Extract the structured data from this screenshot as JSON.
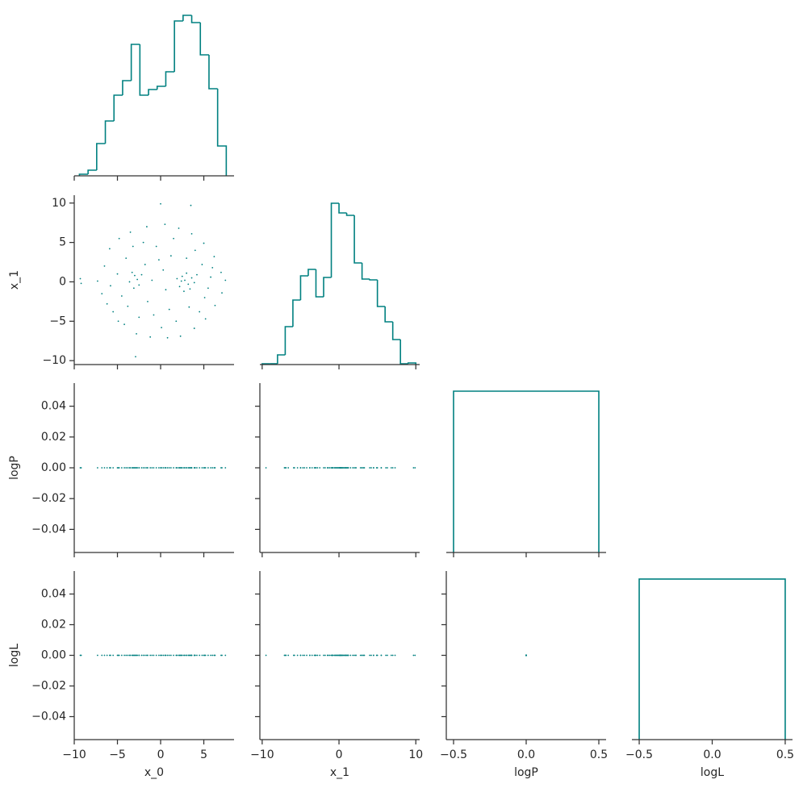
{
  "chart_data": {
    "type": "pairplot",
    "color": "#008080",
    "variables": [
      {
        "name": "x_0",
        "xlim": [
          -10,
          8.5
        ],
        "xticks": [
          {
            "value": -10,
            "label": "−10"
          },
          {
            "value": -5,
            "label": "−5"
          },
          0,
          5
        ],
        "bins": [
          -9.4,
          -8.4,
          -7.4,
          -6.4,
          -5.4,
          -4.4,
          -3.4,
          -2.4,
          -1.4,
          -0.4,
          0.6,
          1.6,
          2.6,
          3.6,
          4.6,
          5.6,
          6.6,
          7.6
        ],
        "counts": [
          2,
          7,
          40,
          68,
          100,
          118,
          163,
          100,
          107,
          111,
          129,
          192,
          199,
          190,
          150,
          108,
          37
        ],
        "count_lim": [
          0,
          210
        ],
        "samples": [
          -9.3,
          -9.2,
          0.0,
          3.5,
          -2.9,
          -3.0,
          -2.7,
          -3.3,
          -2.5,
          -3.6,
          -2.2,
          -3.1,
          2.8,
          3.2,
          2.5,
          3.6,
          2.2,
          3.0,
          2.7,
          3.9,
          2.4,
          3.4,
          1.9,
          4.2,
          -6.5,
          -6.8,
          -5.9,
          -5.5,
          -4.8,
          -4.2,
          -3.5,
          -2.8,
          -1.6,
          -1.2,
          0.5,
          0.8,
          2.1,
          2.3,
          3.6,
          3.9,
          5.0,
          5.2,
          6.2,
          6.3,
          7.0,
          7.1,
          7.5,
          -7.3,
          -5.0,
          -4.5,
          -4.0,
          -3.8,
          -1.8,
          -1.5,
          -0.5,
          -0.8,
          0.3,
          0.6,
          1.2,
          1.0,
          4.8,
          5.1,
          5.8,
          4.5,
          4.0,
          1.5,
          -2.0,
          -2.5,
          1.8,
          -5.8,
          6.0,
          -1.0,
          0.1,
          -4.9,
          5.5,
          3.0,
          3.3,
          -0.2,
          -6.2,
          -3.2
        ]
      },
      {
        "name": "x_1",
        "xlim": [
          -10.3,
          10.5
        ],
        "ylim": [
          -10.5,
          11
        ],
        "xticks": [
          {
            "value": -10,
            "label": "−10"
          },
          0,
          10
        ],
        "yticks": [
          {
            "value": -10,
            "label": "−10"
          },
          {
            "value": -5,
            "label": "−5"
          },
          0,
          5,
          10
        ],
        "bins": [
          -10,
          -9,
          -8,
          -7,
          -6,
          -5,
          -4,
          -3,
          -2,
          -1,
          0,
          1,
          2,
          3,
          4,
          5,
          6,
          7,
          8,
          9,
          10
        ],
        "counts": [
          1,
          1,
          12,
          47,
          80,
          110,
          118,
          84,
          108,
          200,
          188,
          185,
          126,
          106,
          105,
          72,
          53,
          31,
          1,
          2
        ],
        "count_lim": [
          0,
          210
        ],
        "samples": [
          0.4,
          -0.2,
          9.9,
          9.7,
          -9.5,
          0.8,
          0.3,
          1.2,
          -0.4,
          0.0,
          0.9,
          -0.8,
          0.2,
          -0.3,
          0.7,
          0.5,
          -0.6,
          1.1,
          -1.2,
          -0.1,
          0.1,
          -0.9,
          0.4,
          0.9,
          2.0,
          -1.5,
          4.2,
          -3.8,
          5.5,
          -5.4,
          6.3,
          -6.6,
          7.0,
          -7.0,
          7.3,
          -7.1,
          6.8,
          -6.9,
          6.1,
          -5.9,
          4.9,
          -4.7,
          3.2,
          -3.0,
          1.2,
          -1.4,
          0.2,
          0.1,
          1.0,
          -1.8,
          3.0,
          -3.1,
          2.2,
          -2.5,
          4.5,
          -4.2,
          1.5,
          -1.0,
          3.3,
          -3.5,
          2.2,
          -2.0,
          0.6,
          -3.8,
          4.0,
          5.5,
          5.0,
          -4.5,
          -5.0,
          -0.5,
          1.8,
          0.2,
          -5.8,
          -5.0,
          -0.8,
          3.0,
          -3.2,
          2.8,
          -2.8,
          4.5
        ]
      },
      {
        "name": "logP",
        "xlim": [
          -0.55,
          0.55
        ],
        "ylim": [
          -0.055,
          0.055
        ],
        "xticks": [
          {
            "value": -0.5,
            "label": "−0.5"
          },
          {
            "value": 0,
            "label": "0.0"
          },
          0.5
        ],
        "yticks": [
          {
            "value": -0.04,
            "label": "−0.04"
          },
          {
            "value": -0.02,
            "label": "−0.02"
          },
          {
            "value": 0,
            "label": "0.00"
          },
          0.02,
          0.04
        ],
        "bins": [
          -0.5,
          0.5
        ],
        "counts": [
          2000
        ],
        "count_lim": [
          0,
          2100
        ],
        "samples": [
          0,
          0,
          0,
          0,
          0,
          0,
          0,
          0,
          0,
          0,
          0,
          0,
          0,
          0,
          0,
          0,
          0,
          0,
          0,
          0,
          0,
          0,
          0,
          0,
          0,
          0,
          0,
          0,
          0,
          0,
          0,
          0,
          0,
          0,
          0,
          0,
          0,
          0,
          0,
          0,
          0,
          0,
          0,
          0,
          0,
          0,
          0,
          0,
          0,
          0,
          0,
          0,
          0,
          0,
          0,
          0,
          0,
          0,
          0,
          0,
          0,
          0,
          0,
          0,
          0,
          0,
          0,
          0,
          0,
          0,
          0,
          0,
          0,
          0,
          0,
          0,
          0,
          0,
          0,
          0
        ]
      },
      {
        "name": "logL",
        "xlim": [
          -0.55,
          0.55
        ],
        "ylim": [
          -0.055,
          0.055
        ],
        "xticks": [
          {
            "value": -0.5,
            "label": "−0.5"
          },
          {
            "value": 0,
            "label": "0.0"
          },
          0.5
        ],
        "yticks": [
          {
            "value": -0.04,
            "label": "−0.04"
          },
          {
            "value": -0.02,
            "label": "−0.02"
          },
          {
            "value": 0,
            "label": "0.00"
          },
          0.02,
          0.04
        ],
        "bins": [
          -0.5,
          0.5
        ],
        "counts": [
          2000
        ],
        "count_lim": [
          0,
          2100
        ],
        "samples": [
          0,
          0,
          0,
          0,
          0,
          0,
          0,
          0,
          0,
          0,
          0,
          0,
          0,
          0,
          0,
          0,
          0,
          0,
          0,
          0,
          0,
          0,
          0,
          0,
          0,
          0,
          0,
          0,
          0,
          0,
          0,
          0,
          0,
          0,
          0,
          0,
          0,
          0,
          0,
          0,
          0,
          0,
          0,
          0,
          0,
          0,
          0,
          0,
          0,
          0,
          0,
          0,
          0,
          0,
          0,
          0,
          0,
          0,
          0,
          0,
          0,
          0,
          0,
          0,
          0,
          0,
          0,
          0,
          0,
          0,
          0,
          0,
          0,
          0,
          0,
          0,
          0,
          0,
          0,
          0
        ]
      }
    ]
  }
}
